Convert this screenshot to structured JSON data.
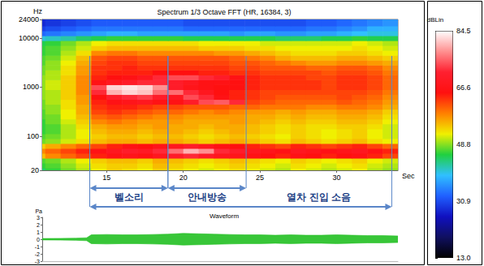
{
  "chart_data": [
    {
      "type": "heatmap",
      "title": "Spectrum 1/3 Octave FFT (HR, 16384, 3)",
      "xlabel": "Sec",
      "ylabel": "Hz",
      "log": "y",
      "grid": false,
      "xlim": [
        10.8,
        34
      ],
      "xticks": [
        15,
        20,
        25,
        30
      ],
      "ylim": [
        20,
        24000
      ],
      "yticks": [
        20,
        100,
        1000,
        10000,
        24000
      ],
      "time_edges": [
        10,
        11,
        12,
        13,
        14,
        15,
        16,
        17,
        18,
        19,
        20,
        21,
        22,
        23,
        24,
        25,
        26,
        27,
        28,
        29,
        30,
        31,
        32,
        33,
        34
      ],
      "band_edges": [
        17.8,
        22.4,
        28.2,
        35.5,
        44.7,
        56.2,
        70.8,
        89.1,
        112,
        141,
        178,
        224,
        282,
        355,
        447,
        562,
        708,
        891,
        1122,
        1413,
        1778,
        2239,
        2818,
        3548,
        4467,
        5623,
        7079,
        8913,
        11220,
        14125,
        17783,
        24000
      ],
      "cells": [
        [
          44,
          46,
          48,
          50,
          52,
          54,
          53,
          52,
          54,
          53,
          52,
          51,
          52,
          53,
          52,
          51,
          50,
          52,
          51,
          50,
          51,
          52,
          50,
          49
        ],
        [
          46,
          47,
          49,
          51,
          53,
          54,
          54,
          53,
          55,
          54,
          53,
          52,
          53,
          54,
          53,
          52,
          51,
          53,
          52,
          51,
          52,
          53,
          51,
          50
        ],
        [
          47,
          48,
          50,
          52,
          54,
          55,
          55,
          54,
          56,
          55,
          54,
          53,
          54,
          55,
          54,
          53,
          52,
          54,
          53,
          52,
          53,
          54,
          52,
          51
        ],
        [
          55,
          58,
          60,
          62,
          64,
          66,
          67,
          66,
          68,
          70,
          72,
          70,
          68,
          67,
          66,
          65,
          64,
          66,
          65,
          64,
          65,
          66,
          64,
          62
        ],
        [
          58,
          60,
          62,
          64,
          66,
          68,
          70,
          69,
          72,
          76,
          80,
          78,
          72,
          70,
          68,
          67,
          66,
          68,
          67,
          66,
          67,
          68,
          66,
          64
        ],
        [
          54,
          56,
          58,
          60,
          62,
          64,
          66,
          65,
          67,
          68,
          70,
          68,
          66,
          65,
          64,
          63,
          62,
          64,
          63,
          62,
          63,
          64,
          62,
          60
        ],
        [
          48,
          49,
          51,
          53,
          55,
          56,
          56,
          55,
          56,
          56,
          55,
          54,
          55,
          56,
          55,
          54,
          53,
          55,
          54,
          53,
          54,
          55,
          53,
          52
        ],
        [
          47,
          48,
          50,
          52,
          54,
          55,
          55,
          54,
          55,
          55,
          54,
          53,
          54,
          55,
          54,
          53,
          52,
          54,
          53,
          52,
          53,
          54,
          52,
          51
        ],
        [
          46,
          47,
          50,
          52,
          55,
          56,
          56,
          55,
          56,
          56,
          55,
          54,
          55,
          56,
          55,
          54,
          53,
          54,
          53,
          52,
          53,
          54,
          52,
          51
        ],
        [
          46,
          47,
          50,
          53,
          56,
          57,
          57,
          56,
          57,
          56,
          56,
          55,
          56,
          56,
          55,
          54,
          53,
          54,
          53,
          53,
          54,
          54,
          53,
          51
        ],
        [
          46,
          48,
          51,
          54,
          58,
          59,
          58,
          57,
          57,
          57,
          56,
          56,
          56,
          57,
          56,
          55,
          54,
          55,
          54,
          54,
          55,
          55,
          54,
          52
        ],
        [
          47,
          48,
          52,
          55,
          60,
          61,
          60,
          59,
          58,
          58,
          57,
          57,
          57,
          57,
          56,
          56,
          55,
          56,
          55,
          55,
          56,
          56,
          55,
          53
        ],
        [
          47,
          49,
          52,
          56,
          62,
          63,
          62,
          61,
          60,
          60,
          59,
          58,
          59,
          58,
          57,
          57,
          56,
          57,
          56,
          56,
          57,
          57,
          56,
          54
        ],
        [
          48,
          49,
          53,
          56,
          63,
          64,
          64,
          63,
          62,
          62,
          61,
          61,
          61,
          60,
          60,
          59,
          59,
          59,
          58,
          58,
          59,
          59,
          58,
          56
        ],
        [
          48,
          50,
          53,
          57,
          64,
          66,
          67,
          68,
          66,
          66,
          70,
          74,
          75,
          72,
          62,
          61,
          60,
          60,
          60,
          60,
          61,
          60,
          59,
          57
        ],
        [
          49,
          50,
          54,
          57,
          65,
          70,
          72,
          73,
          70,
          68,
          74,
          72,
          66,
          64,
          63,
          62,
          61,
          61,
          61,
          61,
          62,
          61,
          60,
          58
        ],
        [
          49,
          50,
          54,
          58,
          72,
          80,
          82,
          81,
          76,
          76,
          72,
          68,
          65,
          64,
          63,
          62,
          62,
          62,
          62,
          62,
          62,
          62,
          61,
          59
        ],
        [
          49,
          51,
          54,
          58,
          74,
          82,
          83,
          82,
          78,
          70,
          67,
          66,
          65,
          65,
          64,
          63,
          63,
          63,
          63,
          62,
          63,
          63,
          62,
          60
        ],
        [
          49,
          51,
          54,
          58,
          66,
          68,
          70,
          72,
          72,
          70,
          68,
          66,
          66,
          65,
          64,
          63,
          63,
          63,
          63,
          62,
          63,
          63,
          62,
          60
        ],
        [
          49,
          50,
          54,
          58,
          64,
          65,
          66,
          68,
          72,
          74,
          74,
          72,
          70,
          66,
          64,
          63,
          63,
          63,
          62,
          62,
          63,
          63,
          62,
          60
        ],
        [
          48,
          50,
          53,
          57,
          63,
          64,
          64,
          64,
          65,
          65,
          65,
          64,
          64,
          63,
          63,
          62,
          62,
          62,
          62,
          61,
          62,
          62,
          61,
          59
        ],
        [
          48,
          49,
          53,
          57,
          63,
          63,
          64,
          63,
          63,
          63,
          63,
          63,
          63,
          62,
          62,
          61,
          61,
          61,
          60,
          60,
          61,
          61,
          60,
          58
        ],
        [
          47,
          49,
          52,
          56,
          62,
          63,
          63,
          62,
          62,
          62,
          62,
          62,
          62,
          61,
          61,
          60,
          59,
          58,
          57,
          57,
          58,
          58,
          57,
          56
        ],
        [
          47,
          48,
          51,
          55,
          61,
          62,
          62,
          61,
          61,
          61,
          61,
          61,
          61,
          60,
          59,
          58,
          56,
          55,
          55,
          55,
          56,
          56,
          55,
          54
        ],
        [
          46,
          47,
          50,
          53,
          58,
          59,
          59,
          58,
          58,
          58,
          58,
          58,
          57,
          57,
          56,
          55,
          54,
          53,
          53,
          53,
          54,
          54,
          53,
          52
        ],
        [
          46,
          47,
          49,
          51,
          54,
          55,
          55,
          55,
          55,
          55,
          55,
          54,
          54,
          54,
          53,
          53,
          52,
          52,
          52,
          52,
          52,
          53,
          52,
          51
        ],
        [
          45,
          46,
          48,
          50,
          52,
          53,
          53,
          53,
          53,
          53,
          53,
          52,
          52,
          52,
          52,
          51,
          51,
          51,
          51,
          51,
          51,
          52,
          51,
          50
        ],
        [
          40,
          41,
          42,
          44,
          45,
          46,
          46,
          46,
          46,
          46,
          45,
          45,
          45,
          45,
          45,
          45,
          44,
          44,
          44,
          45,
          45,
          46,
          45,
          45
        ],
        [
          33,
          34,
          35,
          36,
          37,
          38,
          38,
          37,
          37,
          37,
          37,
          37,
          37,
          36,
          37,
          37,
          36,
          36,
          37,
          37,
          38,
          39,
          40,
          40
        ],
        [
          30,
          31,
          32,
          33,
          34,
          34,
          34,
          34,
          34,
          34,
          33,
          33,
          33,
          33,
          33,
          33,
          33,
          33,
          34,
          34,
          35,
          36,
          38,
          38
        ],
        [
          28,
          29,
          30,
          31,
          32,
          32,
          32,
          32,
          32,
          32,
          31,
          31,
          31,
          31,
          31,
          31,
          31,
          31,
          32,
          32,
          33,
          34,
          35,
          36
        ]
      ],
      "colorbar": {
        "label": "dBLin",
        "range": [
          13,
          84.5
        ],
        "ticks": [
          {
            "value": 13,
            "label": "13.0"
          },
          30.9,
          48.8,
          66.6,
          84.5
        ],
        "colors": [
          "#000000",
          "#101060",
          "#1010c0",
          "#2060ff",
          "#30c0ff",
          "#20d040",
          "#f0f000",
          "#ff8000",
          "#ff1010",
          "#ff2030",
          "#ff9090",
          "#ffffff"
        ]
      },
      "annotations": [
        {
          "text": "벨소리",
          "start": 13.9,
          "end": 19.0
        },
        {
          "text": "안내방송",
          "start": 19.0,
          "end": 24.1
        },
        {
          "text": "열차 진입 소음",
          "start": 13.9,
          "end": 33.6
        }
      ]
    },
    {
      "type": "line",
      "title": "Waveform",
      "ylabel": "Pa",
      "tick_labels": "y",
      "color": "#22c022",
      "xlim": [
        10.8,
        34
      ],
      "ylim": [
        -3,
        3
      ],
      "yticks": [
        -3,
        -2,
        -1,
        0,
        1,
        2,
        3
      ],
      "x": [
        10.8,
        12,
        13,
        13.7,
        14,
        15,
        16,
        17,
        18,
        19,
        20,
        21,
        22,
        23,
        24,
        25,
        26,
        27,
        28,
        29,
        30,
        31,
        32,
        33,
        34
      ],
      "upper": [
        0.1,
        0.12,
        0.15,
        0.2,
        0.6,
        0.65,
        0.6,
        0.6,
        0.65,
        0.7,
        0.8,
        0.75,
        0.7,
        0.65,
        0.6,
        0.6,
        0.55,
        0.6,
        0.55,
        0.55,
        0.6,
        0.55,
        0.5,
        0.5,
        0.45
      ],
      "lower": [
        -0.1,
        -0.12,
        -0.15,
        -0.2,
        -0.6,
        -0.65,
        -0.6,
        -0.6,
        -0.65,
        -0.7,
        -0.8,
        -0.75,
        -0.7,
        -0.65,
        -0.6,
        -0.6,
        -0.55,
        -0.6,
        -0.55,
        -0.55,
        -0.6,
        -0.55,
        -0.5,
        -0.5,
        -0.45
      ]
    }
  ]
}
